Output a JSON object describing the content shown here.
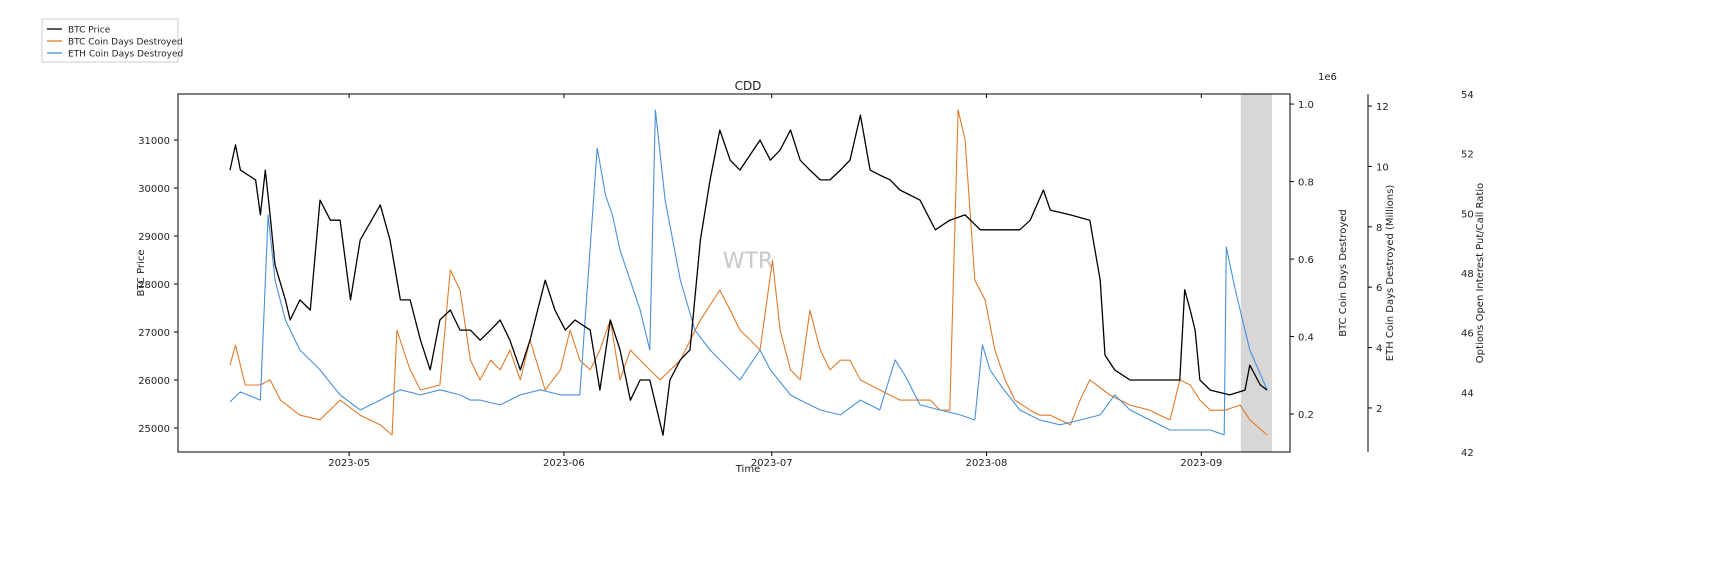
{
  "chart_data": {
    "type": "line",
    "title": "CDD",
    "xlabel": "Time",
    "x_unit": "days since 2023-04-01",
    "xlim": [
      5.3,
      165.8
    ],
    "x_ticks": [
      {
        "day": 30,
        "label": "2023-05"
      },
      {
        "day": 61,
        "label": "2023-06"
      },
      {
        "day": 91,
        "label": "2023-07"
      },
      {
        "day": 122,
        "label": "2023-08"
      },
      {
        "day": 153,
        "label": "2023-09"
      }
    ],
    "shaded_region": [
      158.7,
      163.2
    ],
    "watermark": "WTR",
    "axes": {
      "price": {
        "label": "BTC Price",
        "ylim": [
          24500,
          31960
        ],
        "ticks": [
          25000,
          26000,
          27000,
          28000,
          29000,
          30000,
          31000
        ]
      },
      "btc_cdd": {
        "label": "BTC Coin Days Destroyed",
        "offset_label": "1e6",
        "ylim": [
          0.102,
          1.026
        ],
        "ticks": [
          "0.2",
          "0.4",
          "0.6",
          "0.8",
          "1.0"
        ]
      },
      "eth_cdd": {
        "label": "ETH Coin Days Destroyed (Millions)",
        "ylim": [
          0.54,
          12.4
        ],
        "ticks": [
          2,
          4,
          6,
          8,
          10,
          12
        ]
      },
      "putcall": {
        "label": "Options Open Interest Put/Call Ratio",
        "ylim": [
          42,
          54
        ],
        "ticks": [
          42,
          44,
          46,
          48,
          50,
          52,
          54
        ]
      }
    },
    "legend": {
      "placement": "top-left outside",
      "entries": [
        "BTC Price",
        "BTC Coin Days Destroyed",
        "ETH Coin Days Destroyed"
      ]
    },
    "series": [
      {
        "name": "BTC Price",
        "axis": "price",
        "color": "#000000",
        "points": [
          [
            12.8,
            30375
          ],
          [
            13.6,
            30900
          ],
          [
            14.3,
            30375
          ],
          [
            16.5,
            30170
          ],
          [
            17.2,
            29440
          ],
          [
            17.9,
            30375
          ],
          [
            18.6,
            29440
          ],
          [
            19.3,
            28400
          ],
          [
            20.8,
            27670
          ],
          [
            21.5,
            27250
          ],
          [
            22.9,
            27670
          ],
          [
            24.4,
            27460
          ],
          [
            25.8,
            29750
          ],
          [
            27.3,
            29330
          ],
          [
            28.7,
            29330
          ],
          [
            30.2,
            27670
          ],
          [
            31.6,
            28920
          ],
          [
            34.5,
            29650
          ],
          [
            35.9,
            28920
          ],
          [
            37.4,
            27670
          ],
          [
            38.8,
            27670
          ],
          [
            40.3,
            26830
          ],
          [
            41.7,
            26210
          ],
          [
            43.1,
            27250
          ],
          [
            44.6,
            27460
          ],
          [
            46.0,
            27040
          ],
          [
            47.5,
            27040
          ],
          [
            48.9,
            26830
          ],
          [
            50.4,
            27040
          ],
          [
            51.8,
            27250
          ],
          [
            53.2,
            26830
          ],
          [
            54.7,
            26210
          ],
          [
            56.1,
            26830
          ],
          [
            58.3,
            28080
          ],
          [
            59.7,
            27460
          ],
          [
            61.2,
            27040
          ],
          [
            62.6,
            27250
          ],
          [
            64.8,
            27040
          ],
          [
            66.2,
            25790
          ],
          [
            67.7,
            27250
          ],
          [
            69.1,
            26630
          ],
          [
            70.6,
            25580
          ],
          [
            72.0,
            26000
          ],
          [
            73.4,
            26000
          ],
          [
            75.3,
            24850
          ],
          [
            76.3,
            26000
          ],
          [
            77.8,
            26420
          ],
          [
            79.2,
            26630
          ],
          [
            80.7,
            28920
          ],
          [
            82.1,
            30170
          ],
          [
            83.5,
            31210
          ],
          [
            85.0,
            30580
          ],
          [
            86.4,
            30375
          ],
          [
            89.3,
            31000
          ],
          [
            90.8,
            30580
          ],
          [
            92.2,
            30790
          ],
          [
            93.7,
            31210
          ],
          [
            95.1,
            30580
          ],
          [
            96.5,
            30375
          ],
          [
            98.0,
            30170
          ],
          [
            99.4,
            30170
          ],
          [
            100.9,
            30375
          ],
          [
            102.3,
            30580
          ],
          [
            103.8,
            31520
          ],
          [
            105.2,
            30375
          ],
          [
            106.6,
            30270
          ],
          [
            108.1,
            30170
          ],
          [
            109.5,
            29960
          ],
          [
            112.4,
            29750
          ],
          [
            114.6,
            29130
          ],
          [
            116.7,
            29330
          ],
          [
            118.9,
            29440
          ],
          [
            121.1,
            29130
          ],
          [
            124.0,
            29130
          ],
          [
            126.8,
            29130
          ],
          [
            128.3,
            29330
          ],
          [
            130.2,
            29960
          ],
          [
            131.2,
            29540
          ],
          [
            134.1,
            29440
          ],
          [
            136.9,
            29330
          ],
          [
            138.4,
            28080
          ],
          [
            139.1,
            26520
          ],
          [
            140.5,
            26210
          ],
          [
            142.7,
            26000
          ],
          [
            145.6,
            26000
          ],
          [
            148.5,
            26000
          ],
          [
            149.9,
            26000
          ],
          [
            150.6,
            27880
          ],
          [
            151.4,
            27460
          ],
          [
            152.1,
            27040
          ],
          [
            152.8,
            26000
          ],
          [
            154.3,
            25790
          ],
          [
            157.1,
            25690
          ],
          [
            159.3,
            25790
          ],
          [
            160.0,
            26310
          ],
          [
            161.5,
            25900
          ],
          [
            162.5,
            25790
          ]
        ]
      },
      {
        "name": "BTC Coin Days Destroyed",
        "axis": "btc_cdd",
        "color": "#e07b2a",
        "points": [
          [
            12.8,
            0.326
          ],
          [
            13.6,
            0.378
          ],
          [
            15.0,
            0.275
          ],
          [
            17.2,
            0.275
          ],
          [
            18.6,
            0.288
          ],
          [
            20.1,
            0.236
          ],
          [
            22.9,
            0.197
          ],
          [
            25.8,
            0.185
          ],
          [
            28.7,
            0.236
          ],
          [
            31.6,
            0.197
          ],
          [
            34.5,
            0.172
          ],
          [
            36.2,
            0.146
          ],
          [
            36.9,
            0.417
          ],
          [
            38.8,
            0.314
          ],
          [
            40.3,
            0.262
          ],
          [
            43.1,
            0.275
          ],
          [
            44.6,
            0.572
          ],
          [
            46.0,
            0.52
          ],
          [
            47.5,
            0.339
          ],
          [
            48.9,
            0.288
          ],
          [
            50.4,
            0.339
          ],
          [
            51.8,
            0.314
          ],
          [
            53.2,
            0.365
          ],
          [
            54.7,
            0.288
          ],
          [
            56.1,
            0.391
          ],
          [
            58.3,
            0.262
          ],
          [
            60.5,
            0.314
          ],
          [
            61.9,
            0.417
          ],
          [
            63.3,
            0.339
          ],
          [
            64.8,
            0.314
          ],
          [
            66.2,
            0.365
          ],
          [
            67.7,
            0.443
          ],
          [
            69.1,
            0.288
          ],
          [
            70.6,
            0.365
          ],
          [
            73.4,
            0.314
          ],
          [
            74.9,
            0.288
          ],
          [
            77.8,
            0.339
          ],
          [
            80.7,
            0.443
          ],
          [
            82.1,
            0.481
          ],
          [
            83.5,
            0.52
          ],
          [
            85.0,
            0.468
          ],
          [
            86.4,
            0.417
          ],
          [
            87.9,
            0.391
          ],
          [
            89.3,
            0.365
          ],
          [
            91.1,
            0.597
          ],
          [
            92.2,
            0.417
          ],
          [
            93.7,
            0.314
          ],
          [
            95.1,
            0.288
          ],
          [
            96.5,
            0.468
          ],
          [
            98.0,
            0.365
          ],
          [
            99.4,
            0.314
          ],
          [
            100.9,
            0.339
          ],
          [
            102.3,
            0.339
          ],
          [
            103.8,
            0.288
          ],
          [
            106.6,
            0.262
          ],
          [
            109.5,
            0.236
          ],
          [
            112.4,
            0.236
          ],
          [
            113.9,
            0.236
          ],
          [
            115.3,
            0.21
          ],
          [
            116.7,
            0.21
          ],
          [
            117.9,
            0.985
          ],
          [
            118.9,
            0.907
          ],
          [
            120.3,
            0.546
          ],
          [
            121.8,
            0.494
          ],
          [
            123.2,
            0.365
          ],
          [
            124.7,
            0.288
          ],
          [
            126.1,
            0.236
          ],
          [
            128.3,
            0.21
          ],
          [
            129.7,
            0.197
          ],
          [
            131.2,
            0.197
          ],
          [
            132.6,
            0.185
          ],
          [
            134.1,
            0.172
          ],
          [
            135.5,
            0.236
          ],
          [
            136.9,
            0.288
          ],
          [
            139.8,
            0.249
          ],
          [
            142.7,
            0.223
          ],
          [
            145.6,
            0.21
          ],
          [
            147.0,
            0.197
          ],
          [
            148.5,
            0.185
          ],
          [
            149.9,
            0.288
          ],
          [
            151.4,
            0.275
          ],
          [
            152.8,
            0.236
          ],
          [
            154.3,
            0.21
          ],
          [
            156.4,
            0.21
          ],
          [
            158.6,
            0.223
          ],
          [
            160.0,
            0.185
          ],
          [
            162.5,
            0.146
          ]
        ]
      },
      {
        "name": "ETH Coin Days Destroyed",
        "axis": "eth_cdd",
        "color": "#4a90d9",
        "points": [
          [
            12.8,
            2.2
          ],
          [
            14.3,
            2.53
          ],
          [
            17.2,
            2.26
          ],
          [
            18.3,
            8.39
          ],
          [
            19.3,
            6.24
          ],
          [
            20.8,
            4.91
          ],
          [
            22.9,
            3.92
          ],
          [
            25.8,
            3.26
          ],
          [
            28.7,
            2.43
          ],
          [
            31.6,
            1.93
          ],
          [
            34.5,
            2.26
          ],
          [
            35.9,
            2.43
          ],
          [
            37.4,
            2.6
          ],
          [
            40.3,
            2.43
          ],
          [
            43.1,
            2.6
          ],
          [
            46.0,
            2.43
          ],
          [
            47.5,
            2.26
          ],
          [
            48.9,
            2.26
          ],
          [
            51.8,
            2.1
          ],
          [
            54.7,
            2.43
          ],
          [
            57.6,
            2.6
          ],
          [
            60.5,
            2.43
          ],
          [
            63.3,
            2.43
          ],
          [
            65.8,
            10.61
          ],
          [
            67.0,
            9.05
          ],
          [
            68.0,
            8.39
          ],
          [
            69.1,
            7.23
          ],
          [
            72.0,
            5.25
          ],
          [
            73.4,
            3.92
          ],
          [
            74.2,
            11.87
          ],
          [
            75.6,
            8.89
          ],
          [
            77.8,
            6.24
          ],
          [
            79.9,
            4.58
          ],
          [
            82.1,
            3.92
          ],
          [
            83.5,
            3.59
          ],
          [
            86.4,
            2.93
          ],
          [
            89.3,
            3.92
          ],
          [
            90.8,
            3.26
          ],
          [
            93.7,
            2.43
          ],
          [
            95.1,
            2.26
          ],
          [
            98.0,
            1.93
          ],
          [
            100.9,
            1.77
          ],
          [
            103.8,
            2.26
          ],
          [
            105.2,
            2.1
          ],
          [
            106.6,
            1.93
          ],
          [
            108.8,
            3.59
          ],
          [
            110.2,
            3.09
          ],
          [
            112.4,
            2.1
          ],
          [
            115.3,
            1.93
          ],
          [
            118.2,
            1.77
          ],
          [
            120.3,
            1.6
          ],
          [
            121.4,
            4.09
          ],
          [
            122.5,
            3.26
          ],
          [
            124.0,
            2.76
          ],
          [
            126.8,
            1.93
          ],
          [
            129.7,
            1.6
          ],
          [
            132.6,
            1.44
          ],
          [
            135.5,
            1.6
          ],
          [
            138.4,
            1.77
          ],
          [
            140.5,
            2.43
          ],
          [
            142.7,
            1.93
          ],
          [
            145.6,
            1.6
          ],
          [
            148.5,
            1.27
          ],
          [
            151.4,
            1.27
          ],
          [
            154.3,
            1.27
          ],
          [
            156.3,
            1.11
          ],
          [
            156.6,
            7.33
          ],
          [
            157.9,
            5.91
          ],
          [
            160.0,
            3.92
          ],
          [
            162.5,
            2.6
          ]
        ]
      }
    ]
  }
}
